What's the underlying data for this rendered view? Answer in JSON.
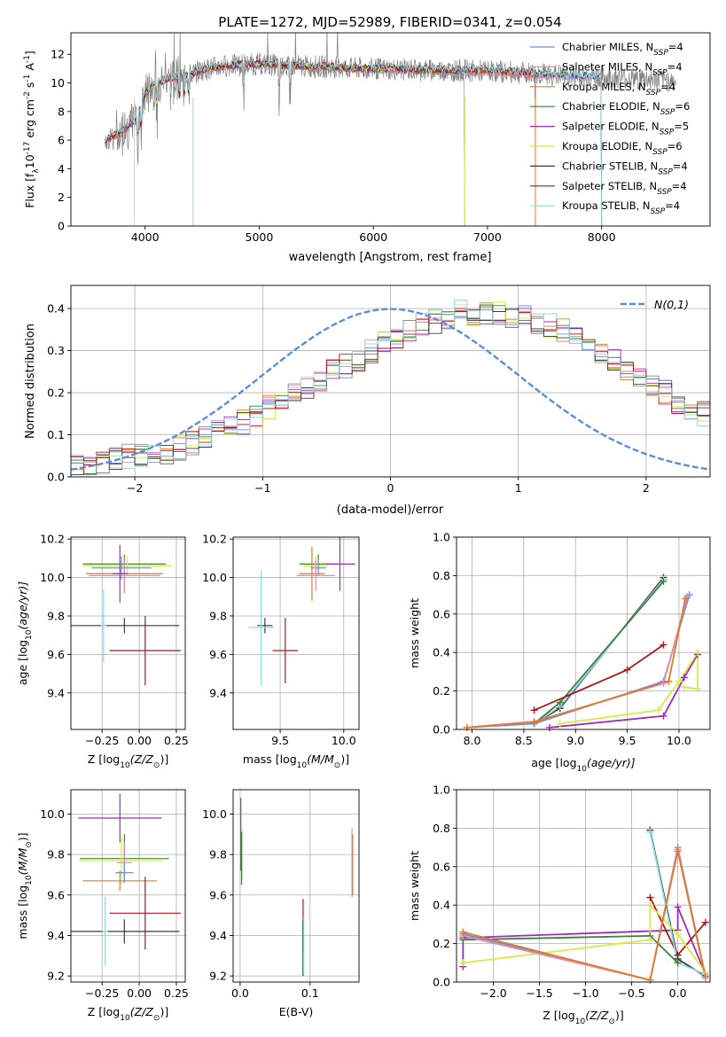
{
  "figure_title": "PLATE=1272, MJD=52989, FIBERID=0341, z=0.054",
  "colors": {
    "chabrier_miles": "#6f8fe0",
    "salpeter_miles": "#e58cab",
    "kroupa_miles": "#e07b28",
    "chabrier_elodie": "#3f7f3f",
    "salpeter_elodie": "#9b2fb8",
    "kroupa_elodie": "#d7ea4c",
    "chabrier_stelib": "#3a3a3a",
    "salpeter_stelib": "#b0161e",
    "kroupa_stelib": "#8fdde3",
    "observed_spectrum": "#7f7f7f",
    "normal_curve": "#5b8fd6"
  },
  "chart_data": [
    {
      "id": "spectrum",
      "type": "line",
      "xlabel": "wavelength [Angstrom, rest frame]",
      "ylabel": "Flux [f",
      "ylabel_sub": "λ",
      "ylabel_rest": "10",
      "ylabel_sup1": "-17",
      "ylabel_mid": " erg cm",
      "ylabel_sup2": "-2",
      "ylabel_mid2": " s",
      "ylabel_sup3": "-1",
      "ylabel_end": " A",
      "ylabel_sup4": "-1",
      "ylabel_close": "]",
      "xlim": [
        3350,
        8950
      ],
      "ylim": [
        0,
        13.5
      ],
      "xticks": [
        4000,
        5000,
        6000,
        7000,
        8000
      ],
      "yticks": [
        0,
        2,
        4,
        6,
        8,
        10,
        12
      ],
      "grid": false,
      "legend_position": "top-right",
      "legend": [
        {
          "label": "Chabrier MILES, N",
          "sub": "SSP",
          "suffix": "=4",
          "color": "#6f8fe0"
        },
        {
          "label": "Salpeter MILES, N",
          "sub": "SSP",
          "suffix": "=4",
          "color": "#e58cab"
        },
        {
          "label": "Kroupa MILES, N",
          "sub": "SSP",
          "suffix": "=4",
          "color": "#e07b28"
        },
        {
          "label": "Chabrier ELODIE, N",
          "sub": "SSP",
          "suffix": "=6",
          "color": "#3f7f3f"
        },
        {
          "label": "Salpeter ELODIE, N",
          "sub": "SSP",
          "suffix": "=5",
          "color": "#9b2fb8"
        },
        {
          "label": "Kroupa ELODIE, N",
          "sub": "SSP",
          "suffix": "=6",
          "color": "#d7ea4c"
        },
        {
          "label": "Chabrier STELIB, N",
          "sub": "SSP",
          "suffix": "=4",
          "color": "#3a3a3a"
        },
        {
          "label": "Salpeter STELIB, N",
          "sub": "SSP",
          "suffix": "=4",
          "color": "#b0161e"
        },
        {
          "label": "Kroupa STELIB, N",
          "sub": "SSP",
          "suffix": "=4",
          "color": "#8fdde3"
        }
      ],
      "continuum": {
        "x": [
          3650,
          3700,
          3800,
          3900,
          3950,
          4000,
          4100,
          4200,
          4300,
          4400,
          4500,
          4700,
          5000,
          5300,
          5600,
          5900,
          6200,
          6500,
          6800,
          7100,
          7400,
          7700,
          8000,
          8300,
          8700
        ],
        "y": [
          6.0,
          6.2,
          6.6,
          7.3,
          8.0,
          9.2,
          10.0,
          10.3,
          10.4,
          10.6,
          10.9,
          11.2,
          11.3,
          11.2,
          11.1,
          11.0,
          10.95,
          10.9,
          10.85,
          10.8,
          10.65,
          10.5,
          10.4,
          10.3,
          10.1
        ]
      },
      "models": [
        {
          "color": "#6f8fe0",
          "end": 8000
        },
        {
          "color": "#e58cab",
          "end": 8000
        },
        {
          "color": "#e07b28",
          "end": 7420
        },
        {
          "color": "#3f7f3f",
          "end": 6800
        },
        {
          "color": "#9b2fb8",
          "end": 6800
        },
        {
          "color": "#d7ea4c",
          "end": 6800
        },
        {
          "color": "#3a3a3a",
          "end": 8000
        },
        {
          "color": "#b0161e",
          "end": 7420
        },
        {
          "color": "#8fdde3",
          "end": 8000
        }
      ],
      "absorption_lines": [
        3933,
        3968,
        4101,
        4226,
        4300,
        4340,
        4383,
        4861,
        5175,
        5270,
        5890,
        6563,
        6800,
        7420
      ]
    },
    {
      "id": "residual-histogram",
      "type": "histogram",
      "xlabel": "(data-model)/error",
      "ylabel": "Normed distribution",
      "xlim": [
        -2.5,
        2.5
      ],
      "ylim": [
        0,
        0.455
      ],
      "xticks": [
        -2,
        -1,
        0,
        1,
        2
      ],
      "yticks": [
        0.0,
        0.1,
        0.2,
        0.3,
        0.4
      ],
      "grid": true,
      "legend_position": "top-right",
      "legend_label": "N(0,1)",
      "bin_width": 0.1,
      "bin_start": -2.5,
      "base_values": [
        0.03,
        0.025,
        0.035,
        0.04,
        0.05,
        0.05,
        0.055,
        0.06,
        0.07,
        0.08,
        0.095,
        0.105,
        0.115,
        0.13,
        0.145,
        0.165,
        0.18,
        0.195,
        0.21,
        0.23,
        0.25,
        0.265,
        0.28,
        0.3,
        0.315,
        0.33,
        0.345,
        0.36,
        0.37,
        0.38,
        0.39,
        0.39,
        0.385,
        0.39,
        0.385,
        0.38,
        0.37,
        0.36,
        0.35,
        0.33,
        0.315,
        0.3,
        0.28,
        0.26,
        0.24,
        0.22,
        0.2,
        0.18,
        0.165,
        0.15
      ]
    },
    {
      "id": "age-vs-z",
      "type": "errorbar",
      "xlabel": "Z [log",
      "xlabel_sub": "10",
      "xlabel_end": "(Z/Z",
      "xlabel_sub2": "⊙",
      "xlabel_close": ")]",
      "ylabel": "age  [log",
      "ylabel_sub": "10",
      "ylabel_end": "(age/yr)]",
      "xlim": [
        -0.46,
        0.31
      ],
      "ylim": [
        9.21,
        10.21
      ],
      "xticks": [
        -0.25,
        0.0,
        0.25
      ],
      "xticklabels": [
        "−0.25",
        "0.00",
        "0.25"
      ],
      "yticks": [
        9.4,
        9.6,
        9.8,
        10.0,
        10.2
      ],
      "grid": true,
      "points": [
        {
          "x": -0.1,
          "y": 10.07,
          "xerr": 0.28,
          "yerr": 0.05,
          "color": "#3f7f3f"
        },
        {
          "x": -0.08,
          "y": 10.06,
          "xerr": 0.3,
          "yerr": 0.05,
          "color": "#d7ea4c"
        },
        {
          "x": -0.12,
          "y": 10.05,
          "xerr": 0.2,
          "yerr": 0.06,
          "color": "#6f8fe0"
        },
        {
          "x": -0.1,
          "y": 10.02,
          "xerr": 0.26,
          "yerr": 0.1,
          "color": "#e07b28"
        },
        {
          "x": -0.1,
          "y": 10.01,
          "xerr": 0.24,
          "yerr": 0.08,
          "color": "#e58cab"
        },
        {
          "x": -0.13,
          "y": 10.02,
          "xerr": 0.05,
          "yerr": 0.15,
          "color": "#9b2fb8"
        },
        {
          "x": -0.1,
          "y": 9.75,
          "xerr": 0.37,
          "yerr": 0.04,
          "color": "#3a3a3a"
        },
        {
          "x": -0.24,
          "y": 9.75,
          "xerr": 0.02,
          "yerr": 0.19,
          "color": "#8fdde3"
        },
        {
          "x": 0.04,
          "y": 9.62,
          "xerr": 0.24,
          "yerr": 0.18,
          "color": "#b0161e"
        }
      ]
    },
    {
      "id": "age-vs-mass",
      "type": "errorbar",
      "xlabel": "mass [log",
      "xlabel_sub": "10",
      "xlabel_end": "(M/M",
      "xlabel_sub2": "⊙",
      "xlabel_close": ")]",
      "xlim": [
        9.13,
        10.12
      ],
      "ylim": [
        9.21,
        10.21
      ],
      "xticks": [
        9.5,
        10.0
      ],
      "xticklabels": [
        "9.5",
        "10.0"
      ],
      "yticks": [
        9.4,
        9.6,
        9.8,
        10.0,
        10.2
      ],
      "grid": true,
      "points": [
        {
          "x": 9.8,
          "y": 10.07,
          "xerr": 0.15,
          "yerr": 0.05,
          "color": "#3f7f3f"
        },
        {
          "x": 9.78,
          "y": 10.06,
          "xerr": 0.1,
          "yerr": 0.05,
          "color": "#d7ea4c"
        },
        {
          "x": 9.8,
          "y": 10.05,
          "xerr": 0.06,
          "yerr": 0.04,
          "color": "#6f8fe0"
        },
        {
          "x": 9.75,
          "y": 10.02,
          "xerr": 0.1,
          "yerr": 0.14,
          "color": "#e07b28"
        },
        {
          "x": 9.78,
          "y": 10.01,
          "xerr": 0.15,
          "yerr": 0.08,
          "color": "#e58cab"
        },
        {
          "x": 9.97,
          "y": 10.07,
          "xerr": 0.12,
          "yerr": 0.14,
          "color": "#9b2fb8"
        },
        {
          "x": 9.38,
          "y": 9.75,
          "xerr": 0.06,
          "yerr": 0.04,
          "color": "#3a3a3a"
        },
        {
          "x": 9.35,
          "y": 9.74,
          "xerr": 0.1,
          "yerr": 0.3,
          "color": "#8fdde3"
        },
        {
          "x": 9.54,
          "y": 9.62,
          "xerr": 0.1,
          "yerr": 0.17,
          "color": "#b0161e"
        }
      ]
    },
    {
      "id": "mass-weight-vs-age",
      "type": "line",
      "xlabel": "age  [log",
      "xlabel_sub": "10",
      "xlabel_end": "(age/yr)]",
      "ylabel": "mass weight",
      "xlim": [
        7.85,
        10.3
      ],
      "ylim": [
        0,
        1
      ],
      "xticks": [
        8.0,
        8.5,
        9.0,
        9.5,
        10.0
      ],
      "xticklabels": [
        "8.0",
        "8.5",
        "9.0",
        "9.5",
        "10.0"
      ],
      "yticks": [
        0.0,
        0.2,
        0.4,
        0.6,
        0.8,
        1.0
      ],
      "grid": true,
      "series": [
        {
          "color": "#3a3a3a",
          "x": [
            8.6,
            8.85,
            9.85
          ],
          "y": [
            0.03,
            0.11,
            0.79
          ]
        },
        {
          "color": "#8fdde3",
          "x": [
            8.6,
            8.85,
            9.85
          ],
          "y": [
            0.03,
            0.12,
            0.78
          ]
        },
        {
          "color": "#3f7f3f",
          "x": [
            8.6,
            8.85,
            9.85
          ],
          "y": [
            0.03,
            0.14,
            0.77
          ]
        },
        {
          "color": "#6f8fe0",
          "x": [
            7.95,
            8.6,
            9.85,
            10.1
          ],
          "y": [
            0.01,
            0.03,
            0.25,
            0.7
          ]
        },
        {
          "color": "#e58cab",
          "x": [
            7.95,
            8.6,
            9.85,
            10.08
          ],
          "y": [
            0.01,
            0.04,
            0.24,
            0.69
          ]
        },
        {
          "color": "#e07b28",
          "x": [
            7.95,
            8.6,
            9.9,
            10.06
          ],
          "y": [
            0.01,
            0.04,
            0.25,
            0.68
          ]
        },
        {
          "color": "#b0161e",
          "x": [
            8.6,
            9.5,
            9.85
          ],
          "y": [
            0.1,
            0.31,
            0.44
          ]
        },
        {
          "color": "#9b2fb8",
          "x": [
            8.75,
            9.85,
            10.05,
            10.18
          ],
          "y": [
            0.01,
            0.07,
            0.27,
            0.39
          ]
        },
        {
          "color": "#d7ea4c",
          "x": [
            8.85,
            9.8,
            10.0,
            10.18,
            10.18,
            10.05
          ],
          "y": [
            0.03,
            0.1,
            0.25,
            0.4,
            0.21,
            0.22
          ]
        }
      ]
    },
    {
      "id": "mass-vs-z",
      "type": "errorbar",
      "xlabel": "Z [log",
      "xlabel_sub": "10",
      "xlabel_end": "(Z/Z",
      "xlabel_sub2": "⊙",
      "xlabel_close": ")]",
      "ylabel": "mass [log",
      "ylabel_sub": "10",
      "ylabel_end": "(M/M",
      "ylabel_sub2": "⊙",
      "ylabel_close": ")]",
      "xlim": [
        -0.46,
        0.31
      ],
      "ylim": [
        9.17,
        10.12
      ],
      "xticks": [
        -0.25,
        0.0,
        0.25
      ],
      "xticklabels": [
        "−0.25",
        "0.00",
        "0.25"
      ],
      "yticks": [
        9.2,
        9.4,
        9.6,
        9.8,
        10.0
      ],
      "grid": true,
      "points": [
        {
          "x": -0.13,
          "y": 9.98,
          "xerr": 0.28,
          "yerr": 0.12,
          "color": "#9b2fb8"
        },
        {
          "x": -0.1,
          "y": 9.78,
          "xerr": 0.3,
          "yerr": 0.12,
          "color": "#3f7f3f"
        },
        {
          "x": -0.12,
          "y": 9.77,
          "xerr": 0.28,
          "yerr": 0.12,
          "color": "#d7ea4c"
        },
        {
          "x": -0.1,
          "y": 9.76,
          "xerr": 0.05,
          "yerr": 0.1,
          "color": "#e58cab"
        },
        {
          "x": -0.1,
          "y": 9.71,
          "xerr": 0.06,
          "yerr": 0.05,
          "color": "#6f8fe0"
        },
        {
          "x": -0.13,
          "y": 9.67,
          "xerr": 0.25,
          "yerr": 0.05,
          "color": "#e07b28"
        },
        {
          "x": 0.04,
          "y": 9.51,
          "xerr": 0.24,
          "yerr": 0.18,
          "color": "#b0161e"
        },
        {
          "x": -0.1,
          "y": 9.42,
          "xerr": 0.37,
          "yerr": 0.06,
          "color": "#3a3a3a"
        },
        {
          "x": -0.23,
          "y": 9.42,
          "xerr": 0.02,
          "yerr": 0.17,
          "color": "#8fdde3"
        }
      ]
    },
    {
      "id": "mass-vs-ebv",
      "type": "errorbar",
      "xlabel": "E(B-V)",
      "xlim": [
        -0.01,
        0.17
      ],
      "ylim": [
        9.17,
        10.12
      ],
      "xticks": [
        0.0,
        0.1
      ],
      "xticklabels": [
        "0.0",
        "0.1"
      ],
      "yticks": [
        9.2,
        9.4,
        9.6,
        9.8,
        10.0
      ],
      "grid": true,
      "points": [
        {
          "x": 0.001,
          "y": 9.9,
          "xerr": 0,
          "yerr": 0.18,
          "color": "#9b2fb8"
        },
        {
          "x": 0.003,
          "y": 9.8,
          "xerr": 0,
          "yerr": 0.12,
          "color": "#d7ea4c"
        },
        {
          "x": 0.002,
          "y": 9.78,
          "xerr": 0,
          "yerr": 0.13,
          "color": "#3f7f3f"
        },
        {
          "x": 0.09,
          "y": 9.45,
          "xerr": 0,
          "yerr": 0.13,
          "color": "#b0161e"
        },
        {
          "x": 0.09,
          "y": 9.34,
          "xerr": 0,
          "yerr": 0.14,
          "color": "#3a3a3a"
        },
        {
          "x": 0.091,
          "y": 9.35,
          "xerr": 0,
          "yerr": 0.14,
          "color": "#8fdde3"
        },
        {
          "x": 0.16,
          "y": 9.76,
          "xerr": 0,
          "yerr": 0.17,
          "color": "#e58cab"
        },
        {
          "x": 0.161,
          "y": 9.75,
          "xerr": 0,
          "yerr": 0.15,
          "color": "#e07b28"
        }
      ]
    },
    {
      "id": "mass-weight-vs-z",
      "type": "line",
      "xlabel": "Z [log",
      "xlabel_sub": "10",
      "xlabel_end": "(Z/Z",
      "xlabel_sub2": "⊙",
      "xlabel_close": ")]",
      "ylabel": "mass weight",
      "xlim": [
        -2.4,
        0.35
      ],
      "ylim": [
        0,
        1
      ],
      "xticks": [
        -2.0,
        -1.5,
        -1.0,
        -0.5,
        0.0
      ],
      "xticklabels": [
        "−2.0",
        "−1.5",
        "−1.0",
        "−0.5",
        "0.0"
      ],
      "yticks": [
        0.0,
        0.2,
        0.4,
        0.6,
        0.8,
        1.0
      ],
      "grid": true,
      "series": [
        {
          "color": "#9b2fb8",
          "x": [
            -2.33,
            -2.33,
            0.0,
            0.0,
            0.3
          ],
          "y": [
            0.08,
            0.23,
            0.27,
            0.39,
            0.04
          ]
        },
        {
          "color": "#b0161e",
          "x": [
            -0.3,
            0.0,
            0.3
          ],
          "y": [
            0.44,
            0.14,
            0.31
          ]
        },
        {
          "color": "#3a3a3a",
          "x": [
            -0.3,
            0.0,
            0.3
          ],
          "y": [
            0.79,
            0.12,
            0.03
          ]
        },
        {
          "color": "#8fdde3",
          "x": [
            -0.3,
            0.0,
            0.3
          ],
          "y": [
            0.78,
            0.1,
            0.04
          ]
        },
        {
          "color": "#3f7f3f",
          "x": [
            -2.33,
            -0.3,
            0.0
          ],
          "y": [
            0.22,
            0.24,
            0.1
          ]
        },
        {
          "color": "#d7ea4c",
          "x": [
            -2.33,
            -0.3,
            -0.3,
            0.0,
            0.3
          ],
          "y": [
            0.1,
            0.22,
            0.4,
            0.25,
            0.05
          ]
        },
        {
          "color": "#6f8fe0",
          "x": [
            -2.33,
            -0.3,
            0.0,
            0.3
          ],
          "y": [
            0.25,
            0.01,
            0.7,
            0.03
          ]
        },
        {
          "color": "#e58cab",
          "x": [
            -2.33,
            -0.3,
            0.0,
            0.3
          ],
          "y": [
            0.24,
            0.01,
            0.69,
            0.02
          ]
        },
        {
          "color": "#e07b28",
          "x": [
            -2.33,
            -0.3,
            0.0,
            0.3
          ],
          "y": [
            0.26,
            0.01,
            0.68,
            0.03
          ]
        }
      ]
    }
  ]
}
